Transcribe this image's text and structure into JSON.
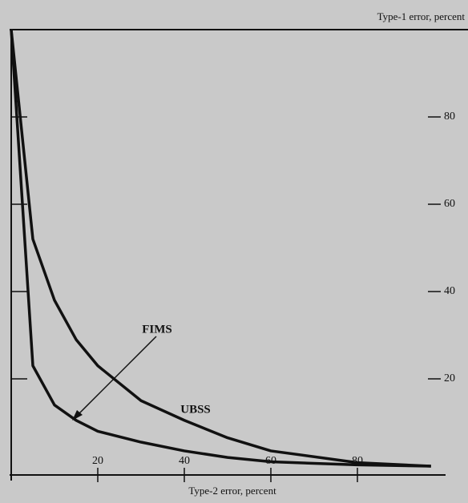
{
  "chart_data": {
    "type": "line",
    "xlabel": "Type-2 error, percent",
    "ylabel": "Type-1 error, percent",
    "x": [
      0,
      5,
      10,
      15,
      20,
      30,
      40,
      50,
      60,
      80,
      97
    ],
    "series": [
      {
        "name": "FIMS",
        "color": "#111111",
        "values": [
          100,
          23,
          14,
          10.5,
          8,
          5.5,
          3.5,
          2,
          1,
          0.3,
          0
        ]
      },
      {
        "name": "UBSS",
        "color": "#111111",
        "values": [
          100,
          52,
          38,
          29,
          23,
          15,
          10.5,
          6.5,
          3.5,
          0.8,
          0
        ]
      }
    ],
    "xlim": [
      0,
      100
    ],
    "ylim": [
      0,
      100
    ],
    "xticks": [
      20,
      40,
      60,
      80
    ],
    "yticks": [
      20,
      40,
      60,
      80
    ],
    "grid": false
  }
}
